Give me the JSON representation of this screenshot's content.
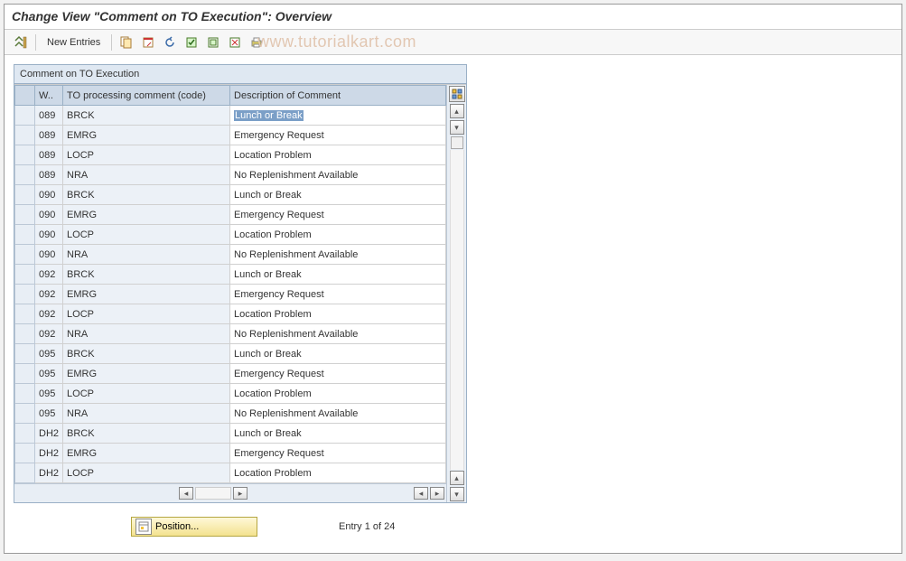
{
  "title": "Change View \"Comment on TO Execution\": Overview",
  "watermark": "www.tutorialkart.com",
  "toolbar": {
    "new_entries": "New Entries"
  },
  "panel": {
    "header": "Comment on TO Execution",
    "columns": {
      "c1": "W..",
      "c2": "TO processing comment (code)",
      "c3": "Description of Comment"
    }
  },
  "rows": [
    {
      "w": "089",
      "code": "BRCK",
      "desc": "Lunch or Break",
      "sel": true
    },
    {
      "w": "089",
      "code": "EMRG",
      "desc": "Emergency Request"
    },
    {
      "w": "089",
      "code": "LOCP",
      "desc": "Location Problem"
    },
    {
      "w": "089",
      "code": "NRA",
      "desc": "No Replenishment Available"
    },
    {
      "w": "090",
      "code": "BRCK",
      "desc": "Lunch or Break"
    },
    {
      "w": "090",
      "code": "EMRG",
      "desc": "Emergency Request"
    },
    {
      "w": "090",
      "code": "LOCP",
      "desc": "Location Problem"
    },
    {
      "w": "090",
      "code": "NRA",
      "desc": "No Replenishment Available"
    },
    {
      "w": "092",
      "code": "BRCK",
      "desc": "Lunch or Break"
    },
    {
      "w": "092",
      "code": "EMRG",
      "desc": "Emergency Request"
    },
    {
      "w": "092",
      "code": "LOCP",
      "desc": "Location Problem"
    },
    {
      "w": "092",
      "code": "NRA",
      "desc": "No Replenishment Available"
    },
    {
      "w": "095",
      "code": "BRCK",
      "desc": "Lunch or Break"
    },
    {
      "w": "095",
      "code": "EMRG",
      "desc": "Emergency Request"
    },
    {
      "w": "095",
      "code": "LOCP",
      "desc": "Location Problem"
    },
    {
      "w": "095",
      "code": "NRA",
      "desc": "No Replenishment Available"
    },
    {
      "w": "DH2",
      "code": "BRCK",
      "desc": "Lunch or Break"
    },
    {
      "w": "DH2",
      "code": "EMRG",
      "desc": "Emergency Request"
    },
    {
      "w": "DH2",
      "code": "LOCP",
      "desc": "Location Problem"
    }
  ],
  "footer": {
    "position_label": "Position...",
    "entry_info": "Entry 1 of 24"
  },
  "colors": {
    "header_bg": "#cdd9e7",
    "panel_bg": "#e8eef5",
    "readonly_bg": "#ecf1f7",
    "selection_bg": "#7b9fc7",
    "border": "#9ab0c6"
  }
}
